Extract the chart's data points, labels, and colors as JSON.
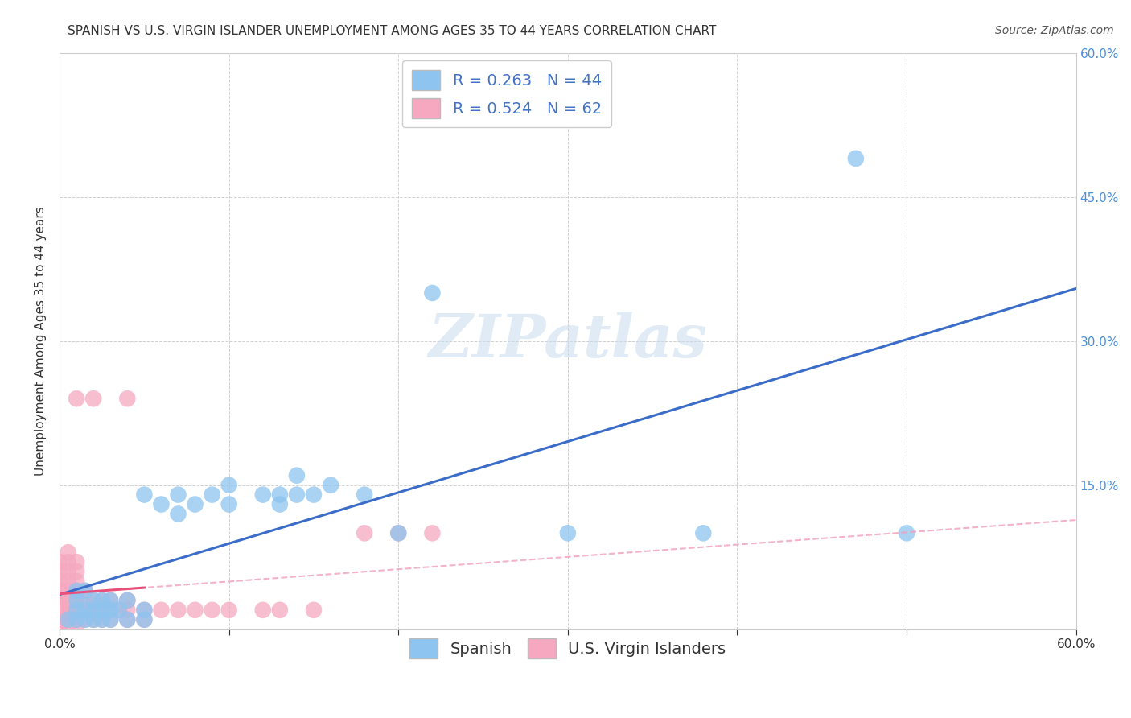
{
  "title": "SPANISH VS U.S. VIRGIN ISLANDER UNEMPLOYMENT AMONG AGES 35 TO 44 YEARS CORRELATION CHART",
  "source": "Source: ZipAtlas.com",
  "ylabel": "Unemployment Among Ages 35 to 44 years",
  "xlim": [
    0.0,
    0.6
  ],
  "ylim": [
    0.0,
    0.6
  ],
  "xticks": [
    0.0,
    0.1,
    0.2,
    0.3,
    0.4,
    0.5,
    0.6
  ],
  "yticks": [
    0.0,
    0.15,
    0.3,
    0.45,
    0.6
  ],
  "xticklabels": [
    "0.0%",
    "",
    "",
    "",
    "",
    "",
    "60.0%"
  ],
  "right_yticklabels": [
    "15.0%",
    "30.0%",
    "45.0%",
    "60.0%"
  ],
  "spanish_R": 0.263,
  "spanish_N": 44,
  "virgin_R": 0.524,
  "virgin_N": 62,
  "spanish_color": "#8DC4F0",
  "virgin_color": "#F5A8C0",
  "regression_blue": "#3A6CC8",
  "regression_pink_solid": "#E8507A",
  "regression_pink_dash": "#F0A0B8",
  "background_color": "#FFFFFF",
  "grid_color": "#CCCCCC",
  "watermark_text": "ZIPatlas",
  "title_fontsize": 11,
  "axis_label_fontsize": 11,
  "tick_fontsize": 11,
  "legend_fontsize": 14,
  "source_fontsize": 10,
  "spanish_x": [
    0.005,
    0.01,
    0.01,
    0.01,
    0.01,
    0.015,
    0.015,
    0.015,
    0.02,
    0.02,
    0.02,
    0.025,
    0.025,
    0.025,
    0.03,
    0.03,
    0.03,
    0.035,
    0.04,
    0.04,
    0.05,
    0.05,
    0.05,
    0.06,
    0.07,
    0.07,
    0.08,
    0.09,
    0.1,
    0.1,
    0.12,
    0.13,
    0.13,
    0.14,
    0.14,
    0.15,
    0.16,
    0.18,
    0.2,
    0.22,
    0.3,
    0.38,
    0.47,
    0.5
  ],
  "spanish_y": [
    0.01,
    0.01,
    0.02,
    0.03,
    0.04,
    0.01,
    0.02,
    0.04,
    0.01,
    0.02,
    0.03,
    0.01,
    0.02,
    0.03,
    0.01,
    0.02,
    0.03,
    0.02,
    0.01,
    0.03,
    0.01,
    0.02,
    0.14,
    0.13,
    0.12,
    0.14,
    0.13,
    0.14,
    0.13,
    0.15,
    0.14,
    0.13,
    0.14,
    0.14,
    0.16,
    0.14,
    0.15,
    0.14,
    0.1,
    0.35,
    0.1,
    0.1,
    0.49,
    0.1
  ],
  "virgin_x": [
    0.0,
    0.0,
    0.0,
    0.0,
    0.0,
    0.0,
    0.0,
    0.0,
    0.0,
    0.0,
    0.0,
    0.005,
    0.005,
    0.005,
    0.005,
    0.005,
    0.005,
    0.005,
    0.005,
    0.005,
    0.005,
    0.01,
    0.01,
    0.01,
    0.01,
    0.01,
    0.01,
    0.01,
    0.01,
    0.01,
    0.015,
    0.015,
    0.015,
    0.015,
    0.02,
    0.02,
    0.02,
    0.02,
    0.025,
    0.025,
    0.025,
    0.03,
    0.03,
    0.03,
    0.035,
    0.04,
    0.04,
    0.04,
    0.04,
    0.05,
    0.05,
    0.06,
    0.07,
    0.08,
    0.09,
    0.1,
    0.12,
    0.13,
    0.15,
    0.18,
    0.2,
    0.22
  ],
  "virgin_y": [
    0.0,
    0.005,
    0.01,
    0.015,
    0.02,
    0.025,
    0.03,
    0.04,
    0.05,
    0.06,
    0.07,
    0.005,
    0.01,
    0.015,
    0.02,
    0.03,
    0.04,
    0.05,
    0.06,
    0.07,
    0.08,
    0.005,
    0.01,
    0.02,
    0.03,
    0.04,
    0.05,
    0.06,
    0.07,
    0.24,
    0.01,
    0.02,
    0.03,
    0.04,
    0.01,
    0.02,
    0.03,
    0.24,
    0.01,
    0.02,
    0.03,
    0.01,
    0.02,
    0.03,
    0.02,
    0.01,
    0.02,
    0.03,
    0.24,
    0.01,
    0.02,
    0.02,
    0.02,
    0.02,
    0.02,
    0.02,
    0.02,
    0.02,
    0.02,
    0.1,
    0.1,
    0.1
  ]
}
